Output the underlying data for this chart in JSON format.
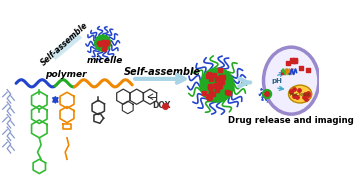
{
  "bg_color": "#ffffff",
  "title_text": "Drug release and imaging",
  "label_micelle": "micelle",
  "label_polymer": "polymer",
  "label_self_assemble1": "Self-assemble",
  "label_self_assemble2": "Self-assemble",
  "arrow_color": "#a8d4e6",
  "micelle_core_green": "#22aa22",
  "micelle_core_red": "#cc2222",
  "tentacle_blue": "#2244cc",
  "tentacle_green": "#22aa22",
  "tentacle_red": "#cc2222",
  "polymer_blue": "#8899cc",
  "polymer_green": "#33bb33",
  "polymer_orange": "#ee8800",
  "cell_border_color": "#9988cc",
  "nucleus_color": "#ffcc44",
  "dox_color": "#cc2222",
  "struct_dark": "#333333",
  "fig_width": 3.57,
  "fig_height": 1.89,
  "dpi": 100
}
